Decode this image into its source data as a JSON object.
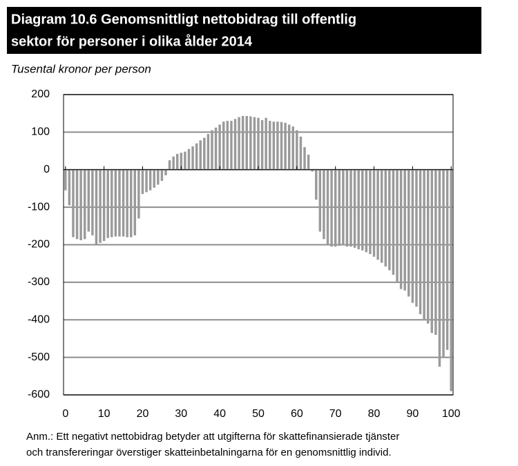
{
  "chart_data": {
    "type": "bar",
    "title": [
      "Diagram 10.6 Genomsnittligt nettobidrag till offentlig",
      "sektor för personer i olika ålder 2014"
    ],
    "subtitle": "Tusental kronor per person",
    "note": [
      "Anm.: Ett negativt nettobidrag betyder att utgifterna för skattefinansierade tjänster",
      "och transfereringar överstiger skatteinbetalningarna för en genomsnittlig individ."
    ],
    "x": [
      0,
      1,
      2,
      3,
      4,
      5,
      6,
      7,
      8,
      9,
      10,
      11,
      12,
      13,
      14,
      15,
      16,
      17,
      18,
      19,
      20,
      21,
      22,
      23,
      24,
      25,
      26,
      27,
      28,
      29,
      30,
      31,
      32,
      33,
      34,
      35,
      36,
      37,
      38,
      39,
      40,
      41,
      42,
      43,
      44,
      45,
      46,
      47,
      48,
      49,
      50,
      51,
      52,
      53,
      54,
      55,
      56,
      57,
      58,
      59,
      60,
      61,
      62,
      63,
      64,
      65,
      66,
      67,
      68,
      69,
      70,
      71,
      72,
      73,
      74,
      75,
      76,
      77,
      78,
      79,
      80,
      81,
      82,
      83,
      84,
      85,
      86,
      87,
      88,
      89,
      90,
      91,
      92,
      93,
      94,
      95,
      96,
      97,
      98,
      99,
      100
    ],
    "values": [
      -55,
      -95,
      -180,
      -185,
      -188,
      -185,
      -165,
      -175,
      -200,
      -195,
      -190,
      -182,
      -180,
      -178,
      -178,
      -178,
      -180,
      -180,
      -175,
      -130,
      -65,
      -60,
      -55,
      -48,
      -40,
      -30,
      -15,
      25,
      35,
      42,
      45,
      48,
      55,
      62,
      70,
      78,
      85,
      95,
      105,
      112,
      120,
      128,
      130,
      130,
      135,
      140,
      143,
      143,
      142,
      140,
      138,
      132,
      138,
      130,
      128,
      128,
      127,
      125,
      120,
      115,
      105,
      88,
      60,
      40,
      -5,
      -80,
      -165,
      -185,
      -200,
      -205,
      -205,
      -203,
      -202,
      -205,
      -205,
      -208,
      -212,
      -215,
      -220,
      -225,
      -232,
      -240,
      -248,
      -258,
      -268,
      -280,
      -300,
      -318,
      -322,
      -338,
      -355,
      -365,
      -385,
      -398,
      -410,
      -435,
      -440,
      -525,
      -500,
      -480,
      -590
    ],
    "color": "#9a9a9a",
    "xlim": [
      -0.5,
      100.5
    ],
    "xticks": [
      0,
      10,
      20,
      30,
      40,
      50,
      60,
      70,
      80,
      90,
      100
    ],
    "ylim": [
      -600,
      200
    ],
    "yticks": [
      -600,
      -500,
      -400,
      -300,
      -200,
      -100,
      0,
      100,
      200
    ],
    "grid": true
  }
}
